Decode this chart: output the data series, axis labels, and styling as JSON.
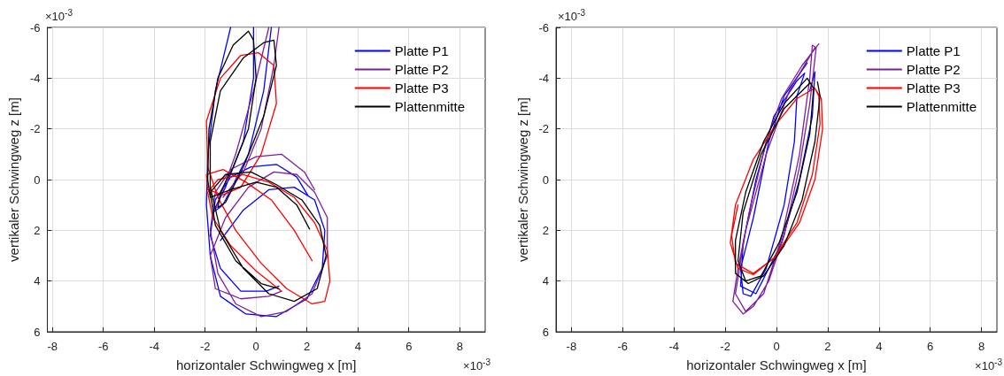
{
  "chart_data": [
    {
      "type": "line",
      "xlabel": "horizontaler Schwingweg x [m]",
      "ylabel": "vertikaler Schwingweg z [m]",
      "annotations": [
        "×10$^{-3}$",
        "×10$^{-3}$"
      ],
      "xlim": [
        -8.2,
        9
      ],
      "xticks": [
        -8,
        -6,
        -4,
        -2,
        0,
        2,
        4,
        6,
        8
      ],
      "ylim": [
        6,
        -6
      ],
      "yticks": [
        -6,
        -4,
        -2,
        0,
        2,
        4,
        6
      ],
      "grid": true,
      "legend": "top right",
      "marker": "none",
      "line_style": "solid",
      "series": [
        {
          "name": "Platte P1",
          "color": "#0000ff",
          "x": [
            -1.4,
            -0.5,
            0.5,
            1.5,
            2.3,
            2.7,
            2.6,
            2.0,
            0.8,
            -0.4,
            -1.4,
            -1.8,
            -1.95,
            -1.9,
            -1.6,
            -1.0,
            null,
            -0.1,
            -0.1,
            -0.5,
            -1.2,
            -1.7,
            -1.3,
            -0.3,
            0.3,
            0.6,
            null,
            2.05,
            1.6,
            0.8,
            -0.2,
            -1.0,
            -1.6,
            -1.8,
            -1.4,
            -0.6,
            0.4,
            0.9
          ],
          "values": [
            2.4,
            1.2,
            0.4,
            0.3,
            0.8,
            2.0,
            3.5,
            4.7,
            5.4,
            5.3,
            4.6,
            3.0,
            1.0,
            -1.0,
            -3.5,
            -6.0,
            null,
            -6.0,
            -4.0,
            -1.5,
            0.3,
            1.3,
            1.0,
            -1.0,
            -3.5,
            -6.0,
            null,
            0.65,
            -0.1,
            -0.6,
            -0.5,
            -0.1,
            0.8,
            2.2,
            3.5,
            4.4,
            4.4,
            4.2
          ]
        },
        {
          "name": "Platte P2",
          "color": "#7e1e9c",
          "x": [
            2.3,
            1.9,
            1.0,
            0.0,
            -1.0,
            -1.6,
            -1.8,
            -1.5,
            -0.8,
            0.2,
            1.2,
            2.2,
            2.8,
            2.8,
            2.3,
            1.6,
            0.7,
            -0.3,
            -1.2,
            -1.8,
            -1.6,
            -0.6,
            0.5,
            1.0,
            null,
            -1.6,
            -0.8,
            -0.1,
            0.5,
            null,
            0.9,
            0.7,
            0.2,
            -0.5,
            -1.3
          ],
          "values": [
            0.4,
            -0.3,
            -1.0,
            -0.9,
            -0.4,
            0.5,
            2.0,
            3.7,
            4.9,
            5.4,
            5.2,
            4.5,
            3.0,
            1.5,
            0.5,
            -0.2,
            -0.3,
            0.3,
            1.5,
            3.0,
            4.3,
            4.7,
            4.6,
            4.4,
            null,
            1.2,
            -1.0,
            -3.5,
            -6.0,
            null,
            -6.0,
            -4.5,
            -2.0,
            -0.3,
            0.7
          ]
        },
        {
          "name": "Platte P3",
          "color": "#ff0000",
          "x": [
            2.2,
            1.5,
            0.6,
            -0.4,
            -1.3,
            -1.95,
            -1.9,
            -1.3,
            -0.6,
            0.2,
            0.8,
            0.7,
            0.1,
            -0.6,
            -1.4,
            -1.95,
            -1.9,
            -1.5,
            -0.8,
            0.2,
            1.2,
            2.2,
            2.7,
            2.9,
            2.8,
            2.3,
            1.5,
            0.5,
            -0.5,
            -1.5,
            -1.9,
            -1.7,
            -1.0,
            0.0,
            1.0
          ],
          "values": [
            3.2,
            2.0,
            0.8,
            0.1,
            -0.4,
            -0.2,
            0.4,
            0.6,
            0.3,
            -1.0,
            -3.0,
            -4.5,
            -5.0,
            -4.9,
            -4.0,
            -2.3,
            -0.5,
            0.7,
            2.0,
            3.3,
            4.3,
            4.9,
            4.8,
            4.0,
            2.8,
            1.7,
            0.7,
            0.1,
            -0.2,
            0.0,
            0.5,
            1.5,
            2.6,
            3.6,
            4.4
          ]
        },
        {
          "name": "Plattenmitte",
          "color": "#000000",
          "x": [
            2.1,
            1.6,
            0.8,
            0.0,
            -1.0,
            -1.8,
            -1.9,
            -1.85,
            -1.5,
            -0.9,
            -0.3,
            -0.1,
            0.0,
            -0.3,
            -0.9,
            -1.4,
            -1.5,
            -1.2,
            -0.5,
            0.3,
            0.8,
            0.7,
            0.3,
            -0.5,
            -1.4,
            -1.8,
            -1.8,
            -1.4,
            -0.5,
            0.5,
            1.5,
            2.4,
            2.75,
            2.5,
            1.8,
            0.8,
            -0.2,
            -1.2,
            -1.8,
            -1.6,
            -0.8,
            0.2,
            0.9
          ],
          "values": [
            1.95,
            1.0,
            0.3,
            0.1,
            0.4,
            0.7,
            0.0,
            -2.0,
            -4.0,
            -5.3,
            -5.85,
            -5.5,
            -4.0,
            -2.0,
            -0.5,
            0.5,
            1.1,
            0.9,
            -0.5,
            -2.5,
            -4.5,
            -5.5,
            -5.4,
            -4.8,
            -3.5,
            -1.5,
            0.3,
            2.0,
            3.5,
            4.5,
            4.8,
            4.3,
            3.0,
            1.8,
            0.8,
            0.2,
            -0.3,
            -0.2,
            0.5,
            1.8,
            3.2,
            4.1,
            4.3
          ]
        }
      ]
    },
    {
      "type": "line",
      "xlabel": "horizontaler Schwingweg x [m]",
      "ylabel": "vertikaler Schwingweg z [m]",
      "annotations": [
        "×10$^{-3}$",
        "×10$^{-3}$"
      ],
      "xlim": [
        -8.6,
        8.6
      ],
      "xticks": [
        -8,
        -6,
        -4,
        -2,
        0,
        2,
        4,
        6,
        8
      ],
      "ylim": [
        6,
        -6
      ],
      "yticks": [
        -6,
        -4,
        -2,
        0,
        2,
        4,
        6
      ],
      "grid": true,
      "legend": "top right",
      "marker": "none",
      "line_style": "solid",
      "series": [
        {
          "name": "Platte P1",
          "color": "#0000ff",
          "x": [
            1.2,
            0.3,
            -0.3,
            -0.9,
            -1.4,
            -1.3,
            -1.0,
            -0.4,
            0.3,
            0.7,
            0.8,
            1.1,
            0.8,
            -0.1,
            -0.8,
            -1.3,
            -1.4,
            -0.8,
            0.2,
            0.9,
            1.4,
            1.5,
            1.3
          ],
          "values": [
            -4.6,
            -3.3,
            -1.5,
            1.5,
            3.5,
            4.5,
            4.6,
            3.5,
            1.0,
            -1.5,
            -3.3,
            -4.2,
            -3.9,
            -2.5,
            0.0,
            2.5,
            4.2,
            4.5,
            2.5,
            0.0,
            -2.5,
            -4.25,
            -3.5
          ]
        },
        {
          "name": "Platte P2",
          "color": "#7e1e9c",
          "x": [
            1.65,
            1.0,
            0.2,
            -0.4,
            -1.0,
            -1.5,
            -1.7,
            -1.3,
            -0.9,
            -0.3,
            0.3,
            0.9,
            1.3,
            1.55,
            1.4,
            1.3,
            0.9,
            0.2,
            -0.5,
            -1.2,
            -1.6,
            -1.2,
            -0.4,
            0.5,
            1.5
          ],
          "values": [
            -5.35,
            -4.5,
            -3.2,
            -1.5,
            1.0,
            3.5,
            4.8,
            5.3,
            5.0,
            4.0,
            2.2,
            -0.5,
            -3.0,
            -5.2,
            -5.3,
            -4.0,
            -1.0,
            2.3,
            4.5,
            5.2,
            4.5,
            2.0,
            -1.0,
            -3.5,
            -5.2
          ]
        },
        {
          "name": "Platte P3",
          "color": "#ff0000",
          "x": [
            1.5,
            1.75,
            1.8,
            1.5,
            0.9,
            0.0,
            -0.9,
            -1.5,
            -1.8,
            -1.6,
            -0.9,
            0.0,
            0.8,
            1.5,
            1.65,
            1.7,
            1.4,
            0.8,
            -0.1,
            -0.9,
            -1.6,
            -1.75,
            -1.5
          ],
          "values": [
            -3.6,
            -3.2,
            -2.0,
            0.0,
            1.7,
            3.0,
            3.75,
            3.5,
            2.5,
            1.0,
            -0.8,
            -2.2,
            -3.2,
            -3.6,
            -3.3,
            -2.2,
            -0.2,
            1.7,
            3.1,
            3.7,
            3.3,
            2.2,
            1.0
          ]
        },
        {
          "name": "Plattenmitte",
          "color": "#000000",
          "x": [
            1.6,
            1.7,
            1.5,
            1.0,
            0.3,
            -0.5,
            -1.1,
            -1.6,
            -1.6,
            -1.2,
            -0.5,
            0.3,
            1.2,
            1.45,
            1.3,
            0.8,
            0.1,
            -0.6,
            -1.2,
            -1.5,
            -1.3,
            -0.6,
            0.3,
            1.3
          ],
          "values": [
            -3.85,
            -3.3,
            -1.5,
            0.8,
            2.6,
            3.8,
            4.1,
            3.7,
            2.4,
            0.5,
            -1.5,
            -3.0,
            -4.0,
            -3.6,
            -1.8,
            0.5,
            2.5,
            3.8,
            4.0,
            3.2,
            1.3,
            -1.0,
            -2.8,
            -3.8
          ]
        }
      ]
    }
  ]
}
